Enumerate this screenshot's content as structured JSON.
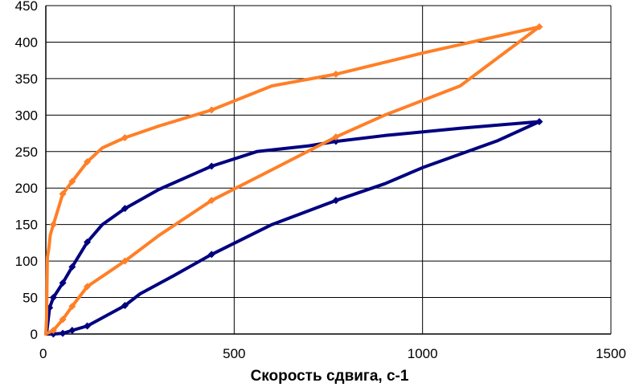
{
  "chart_data": {
    "type": "line",
    "title": "",
    "xlabel": "Скорость сдвига, с-1",
    "ylabel": "",
    "xlim": [
      0,
      1500
    ],
    "ylim": [
      0,
      450
    ],
    "xticks": [
      0,
      500,
      1000,
      1500
    ],
    "yticks": [
      0,
      50,
      100,
      150,
      200,
      250,
      300,
      350,
      400,
      450
    ],
    "grid": true,
    "legend": "none",
    "series": [
      {
        "color": "#000080",
        "points": [
          [
            0,
            0
          ],
          [
            3,
            5
          ],
          [
            10,
            36
          ],
          [
            20,
            50
          ],
          [
            45,
            70
          ],
          [
            70,
            92
          ],
          [
            110,
            126
          ],
          [
            150,
            150
          ],
          [
            210,
            172
          ],
          [
            300,
            198
          ],
          [
            440,
            230
          ],
          [
            560,
            250
          ],
          [
            700,
            258
          ],
          [
            770,
            264
          ],
          [
            900,
            272
          ],
          [
            1100,
            282
          ],
          [
            1310,
            291
          ],
          [
            1200,
            265
          ],
          [
            1000,
            228
          ],
          [
            900,
            206
          ],
          [
            770,
            183
          ],
          [
            600,
            150
          ],
          [
            440,
            109
          ],
          [
            340,
            80
          ],
          [
            250,
            55
          ],
          [
            210,
            39
          ],
          [
            110,
            11
          ],
          [
            70,
            5
          ],
          [
            45,
            1
          ],
          [
            20,
            0
          ],
          [
            0,
            0
          ]
        ]
      },
      {
        "color": "#FF7F27",
        "points": [
          [
            0,
            0
          ],
          [
            2,
            20
          ],
          [
            4,
            105
          ],
          [
            8,
            117
          ],
          [
            12,
            136
          ],
          [
            20,
            150
          ],
          [
            45,
            192
          ],
          [
            70,
            209
          ],
          [
            110,
            236
          ],
          [
            150,
            255
          ],
          [
            210,
            269
          ],
          [
            300,
            285
          ],
          [
            440,
            307
          ],
          [
            600,
            340
          ],
          [
            770,
            356
          ],
          [
            1000,
            385
          ],
          [
            1310,
            421
          ],
          [
            1100,
            340
          ],
          [
            900,
            300
          ],
          [
            770,
            270
          ],
          [
            600,
            225
          ],
          [
            440,
            183
          ],
          [
            300,
            135
          ],
          [
            210,
            100
          ],
          [
            110,
            65
          ],
          [
            70,
            38
          ],
          [
            45,
            20
          ],
          [
            20,
            5
          ],
          [
            8,
            2
          ],
          [
            0,
            0
          ]
        ]
      }
    ]
  }
}
